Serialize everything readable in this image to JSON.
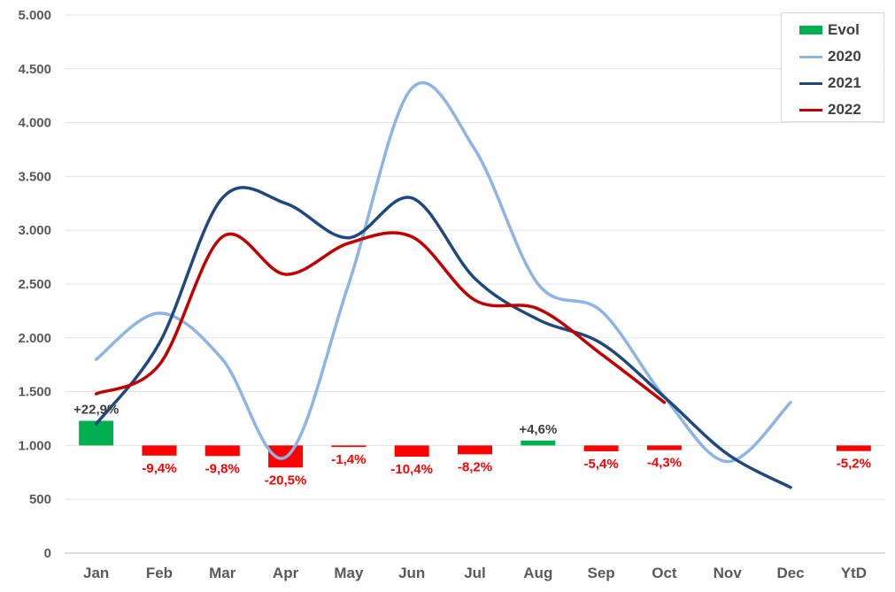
{
  "chart_data": {
    "type": "bar",
    "title": "",
    "xlabel": "",
    "ylabel": "",
    "ylim": [
      0,
      5000
    ],
    "yticks": [
      0,
      500,
      1000,
      1500,
      2000,
      2500,
      3000,
      3500,
      4000,
      4500,
      5000
    ],
    "ytick_labels": [
      "0",
      "500",
      "1.000",
      "1.500",
      "2.000",
      "2.500",
      "3.000",
      "3.500",
      "4.000",
      "4.500",
      "5.000"
    ],
    "categories": [
      "Jan",
      "Feb",
      "Mar",
      "Apr",
      "May",
      "Jun",
      "Jul",
      "Aug",
      "Sep",
      "Oct",
      "Nov",
      "Dec",
      "YtD"
    ],
    "grid": true,
    "legend_position": "top-right",
    "bars": {
      "name": "Evol",
      "baseline": 1000,
      "values": [
        22.9,
        -9.4,
        -9.8,
        -20.5,
        -1.4,
        -10.4,
        -8.2,
        4.6,
        -5.4,
        -4.3,
        null,
        null,
        -5.2
      ],
      "labels": [
        "+22,9%",
        "-9,4%",
        "-9,8%",
        "-20,5%",
        "-1,4%",
        "-10,4%",
        "-8,2%",
        "+4,6%",
        "-5,4%",
        "-4,3%",
        "",
        "",
        "-5,2%"
      ],
      "positive_color": "#00b050",
      "negative_color": "#ff0000"
    },
    "series": [
      {
        "name": "2020",
        "color": "#8eb4e3",
        "values": [
          1800,
          2230,
          1800,
          890,
          2500,
          4320,
          3750,
          2500,
          2250,
          1450,
          850,
          1400,
          null
        ]
      },
      {
        "name": "2021",
        "color": "#1f497d",
        "values": [
          1200,
          1950,
          3300,
          3250,
          2930,
          3300,
          2550,
          2170,
          1950,
          1450,
          920,
          610,
          null
        ]
      },
      {
        "name": "2022",
        "color": "#c00000",
        "values": [
          1480,
          1750,
          2940,
          2590,
          2880,
          2940,
          2350,
          2270,
          1850,
          1400,
          null,
          null,
          null
        ]
      }
    ]
  }
}
